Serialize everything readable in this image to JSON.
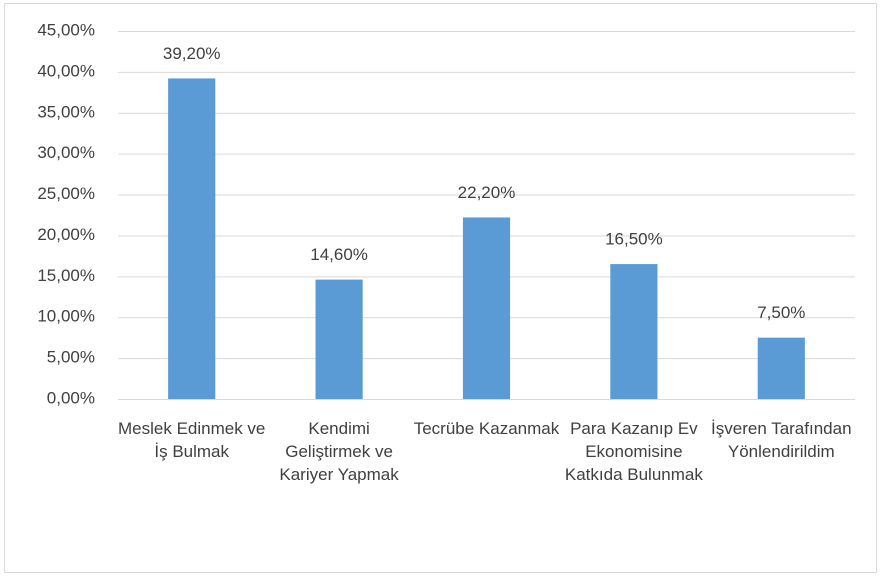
{
  "chart_data": {
    "type": "bar",
    "categories": [
      "Meslek Edinmek ve İş Bulmak",
      "Kendimi Geliştirmek ve Kariyer Yapmak",
      "Tecrübe Kazanmak",
      "Para Kazanıp Ev Ekonomisine Katkıda Bulunmak",
      "İşveren Tarafından Yönlendirildim"
    ],
    "values": [
      39.2,
      14.6,
      22.2,
      16.5,
      7.5
    ],
    "value_labels": [
      "39,20%",
      "14,60%",
      "22,20%",
      "16,50%",
      "7,50%"
    ],
    "color": "#5b9bd5",
    "ylim": [
      0,
      45
    ],
    "yticks": [
      {
        "value": 0,
        "label": "0,00%"
      },
      {
        "value": 5,
        "label": "5,00%"
      },
      {
        "value": 10,
        "label": "10,00%"
      },
      {
        "value": 15,
        "label": "15,00%"
      },
      {
        "value": 20,
        "label": "20,00%"
      },
      {
        "value": 25,
        "label": "25,00%"
      },
      {
        "value": 30,
        "label": "30,00%"
      },
      {
        "value": 35,
        "label": "35,00%"
      },
      {
        "value": 40,
        "label": "40,00%"
      },
      {
        "value": 45,
        "label": "45,00%"
      }
    ],
    "grid": true
  }
}
